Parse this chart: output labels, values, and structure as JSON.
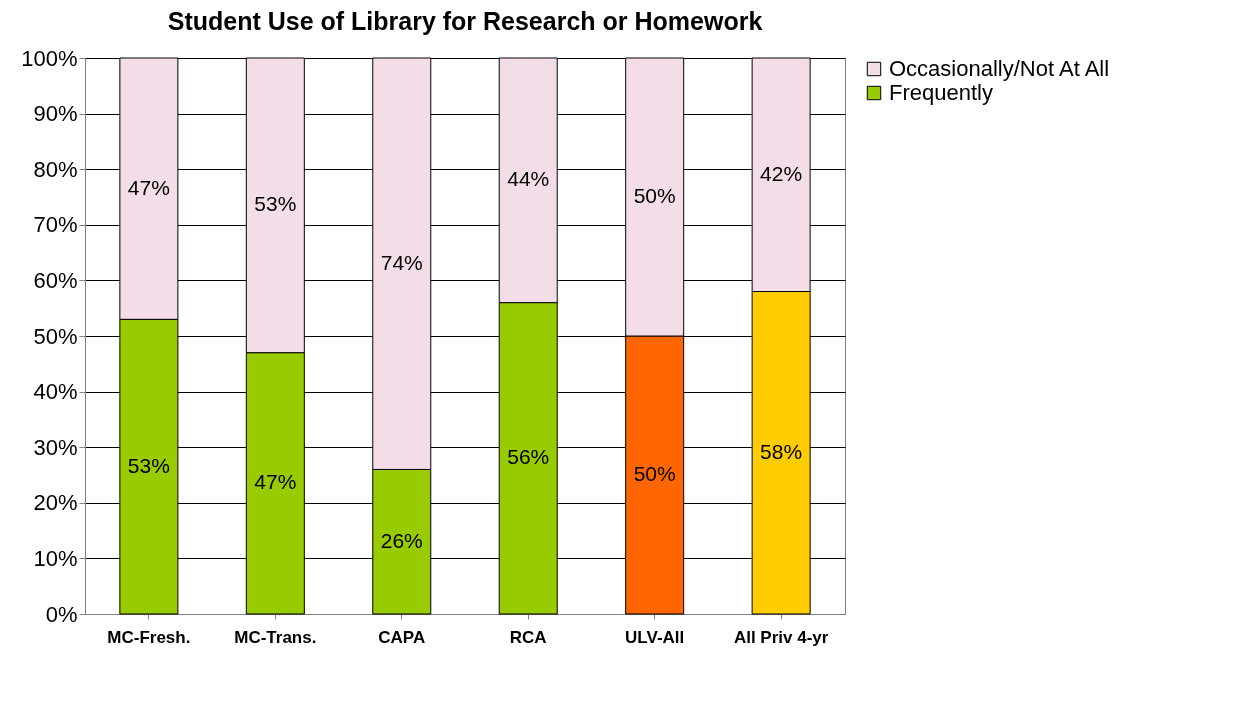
{
  "chart_data": {
    "type": "bar",
    "title": "Student Use of Library for Research or Homework",
    "categories": [
      "MC-Fresh.",
      "MC-Trans.",
      "CAPA",
      "RCA",
      "ULV-All",
      "All Priv 4-yr"
    ],
    "series": [
      {
        "name": "Frequently",
        "color": "#99cc00",
        "colors": [
          "#99cc00",
          "#99cc00",
          "#99cc00",
          "#99cc00",
          "#ff6600",
          "#ffcc00"
        ],
        "values": [
          53,
          47,
          26,
          56,
          50,
          58
        ],
        "value_labels": [
          "53%",
          "47%",
          "26%",
          "56%",
          "50%",
          "58%"
        ]
      },
      {
        "name": "Occasionally/Not At All",
        "color": "#f3dde8",
        "values": [
          47,
          53,
          74,
          44,
          50,
          42
        ],
        "value_labels": [
          "47%",
          "53%",
          "74%",
          "44%",
          "50%",
          "42%"
        ]
      }
    ],
    "stacked": true,
    "ylim": [
      0,
      100
    ],
    "yticks": [
      {
        "value": 0,
        "label": "0%"
      },
      {
        "value": 10,
        "label": "10%"
      },
      {
        "value": 20,
        "label": "20%"
      },
      {
        "value": 30,
        "label": "30%"
      },
      {
        "value": 40,
        "label": "40%"
      },
      {
        "value": 50,
        "label": "50%"
      },
      {
        "value": 60,
        "label": "60%"
      },
      {
        "value": 70,
        "label": "70%"
      },
      {
        "value": 80,
        "label": "80%"
      },
      {
        "value": 90,
        "label": "90%"
      },
      {
        "value": 100,
        "label": "100%"
      }
    ],
    "grid": "y",
    "legend": "right"
  }
}
